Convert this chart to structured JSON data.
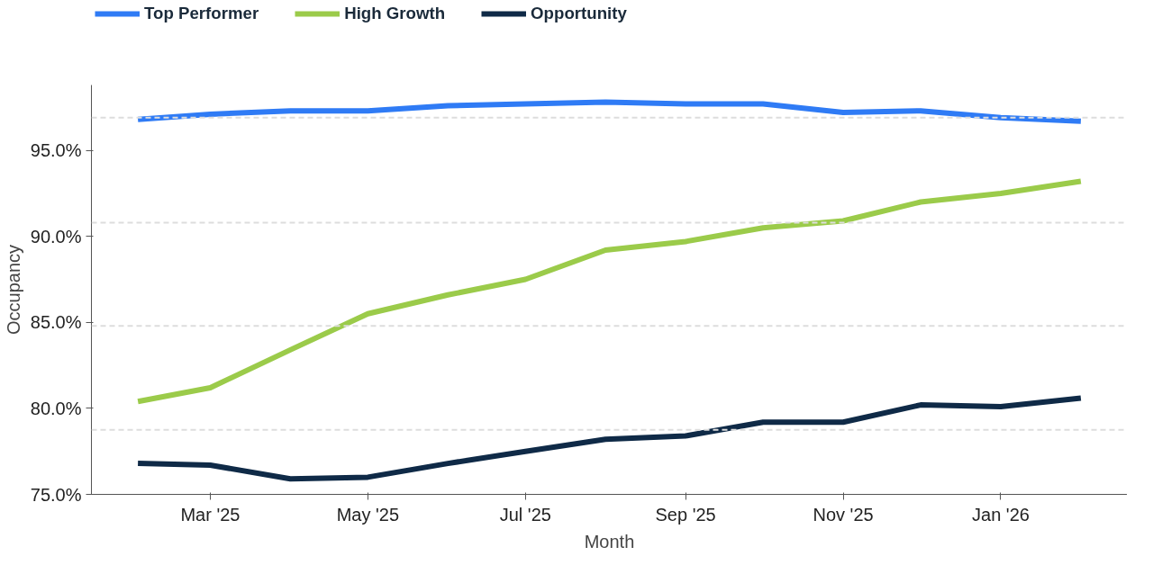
{
  "chart_data": {
    "type": "line",
    "xlabel": "Month",
    "ylabel": "Occupancy",
    "x": [
      "2025-02-01",
      "2025-03-01",
      "2025-04-01",
      "2025-05-01",
      "2025-06-01",
      "2025-07-01",
      "2025-08-01",
      "2025-09-01",
      "2025-10-01",
      "2025-11-01",
      "2025-12-01",
      "2026-01-01",
      "2026-02-01"
    ],
    "series": [
      {
        "name": "Top Performer",
        "color": "#2f7bf5",
        "values": [
          96.8,
          97.1,
          97.3,
          97.3,
          97.6,
          97.7,
          97.8,
          97.7,
          97.7,
          97.2,
          97.3,
          96.9,
          96.7
        ]
      },
      {
        "name": "High Growth",
        "color": "#9bcb4a",
        "values": [
          80.4,
          81.2,
          83.4,
          85.5,
          86.6,
          87.5,
          89.2,
          89.7,
          90.5,
          90.9,
          92.0,
          92.5,
          93.2
        ]
      },
      {
        "name": "Opportunity",
        "color": "#0f2a47",
        "values": [
          76.8,
          76.7,
          75.9,
          76.0,
          76.8,
          77.5,
          78.2,
          78.4,
          79.2,
          79.2,
          80.2,
          80.1,
          80.6
        ]
      }
    ],
    "xlim": [
      "2025-01-14",
      "2026-02-19"
    ],
    "xticks": [
      {
        "value": "2025-03-01",
        "label": "Mar '25"
      },
      {
        "value": "2025-05-01",
        "label": "May '25"
      },
      {
        "value": "2025-07-01",
        "label": "Jul '25"
      },
      {
        "value": "2025-09-01",
        "label": "Sep '25"
      },
      {
        "value": "2025-11-01",
        "label": "Nov '25"
      },
      {
        "value": "2026-01-01",
        "label": "Jan '26"
      }
    ],
    "ylim": [
      75,
      98.8
    ],
    "yticks": [
      {
        "value": 75,
        "label": "75.0%"
      },
      {
        "value": 80,
        "label": "80.0%"
      },
      {
        "value": 85,
        "label": "85.0%"
      },
      {
        "value": 90,
        "label": "90.0%"
      },
      {
        "value": 95,
        "label": "95.0%"
      }
    ],
    "ref_lines": [
      {
        "axis": "y",
        "value": 78.75,
        "color": "#dddddd",
        "line_style": "dashed"
      },
      {
        "axis": "y",
        "value": 84.8,
        "color": "#dddddd",
        "line_style": "dashed"
      },
      {
        "axis": "y",
        "value": 90.8,
        "color": "#dddddd",
        "line_style": "dashed"
      },
      {
        "axis": "y",
        "value": 96.9,
        "color": "#dddddd",
        "line_style": "dashed"
      }
    ],
    "grid": false,
    "legend": "top left",
    "marker": "none",
    "line_style": "solid"
  }
}
